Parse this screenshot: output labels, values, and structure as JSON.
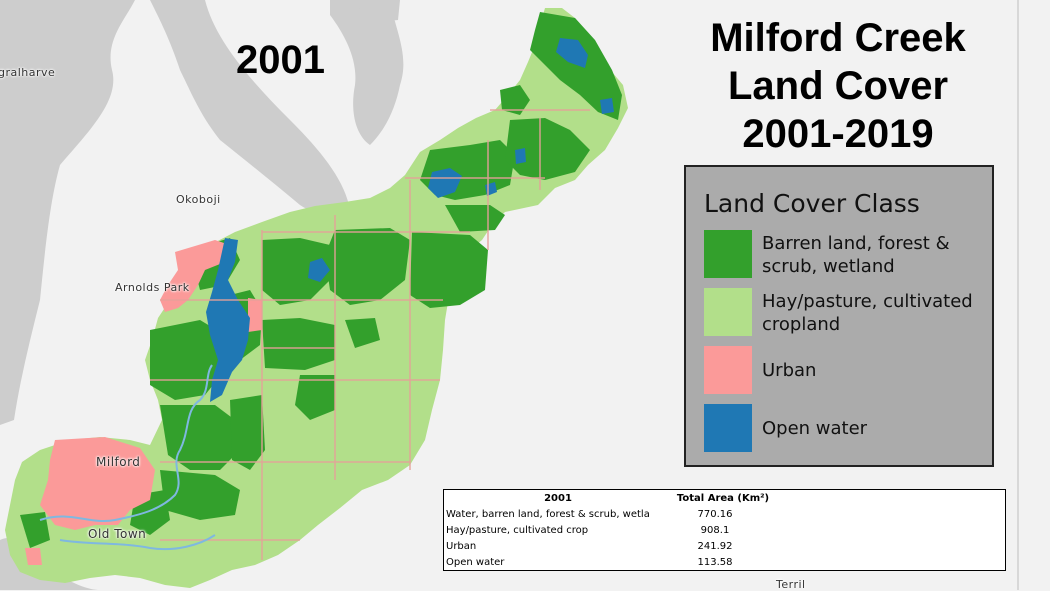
{
  "year_label": "2001",
  "title_lines": [
    "Milford Creek",
    "Land Cover",
    "2001-2019"
  ],
  "map": {
    "places": [
      "gralharve",
      "Okoboji",
      "Arnolds Park",
      "Milford",
      "Old Town",
      "Terril"
    ],
    "colors": {
      "background": "#f2f2f2",
      "lake": "#cdcdcd",
      "forest": "#33a02c",
      "cropland": "#b2df8a",
      "urban": "#fb9a99",
      "water": "#1f78b4",
      "parcel_lines": "#e6a19a",
      "streams": "#7fb8e0"
    }
  },
  "legend": {
    "title": "Land Cover Class",
    "items": [
      {
        "label": "Barren land, forest & scrub, wetland",
        "color": "#33a02c"
      },
      {
        "label": "Hay/pasture, cultivated cropland",
        "color": "#b2df8a"
      },
      {
        "label": "Urban",
        "color": "#fb9a99"
      },
      {
        "label": "Open water",
        "color": "#1f78b4"
      }
    ]
  },
  "table": {
    "headers": [
      "2001",
      "Total Area (Km²)"
    ],
    "rows": [
      [
        "Water, barren land, forest & scrub, wetla",
        "770.16"
      ],
      [
        "Hay/pasture, cultivated crop",
        "908.1"
      ],
      [
        "Urban",
        "241.92"
      ],
      [
        "Open water",
        "113.58"
      ]
    ]
  }
}
